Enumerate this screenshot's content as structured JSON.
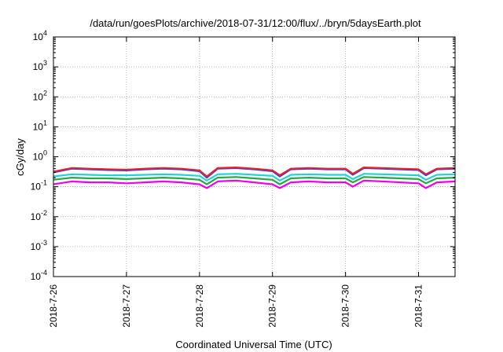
{
  "chart_data": {
    "type": "line",
    "title": "/data/run/goesPlots/archive/2018-07-31/12:00/flux/../bryn/5daysEarth.plot",
    "xlabel": "Coordinated Universal Time (UTC)",
    "ylabel": "cGy/day",
    "yscale": "log",
    "ylim": [
      0.0001,
      10000
    ],
    "xlim": [
      0,
      5.5
    ],
    "grid": true,
    "x_tick_labels": [
      "2018-7-26",
      "2018-7-27",
      "2018-7-28",
      "2018-7-29",
      "2018-7-30",
      "2018-7-31"
    ],
    "x_tick_values": [
      0,
      1,
      2,
      3,
      4,
      5
    ],
    "y_tick_labels": [
      {
        "base": "10",
        "exp": "-4",
        "value": 0.0001
      },
      {
        "base": "10",
        "exp": "-3",
        "value": 0.001
      },
      {
        "base": "10",
        "exp": "-2",
        "value": 0.01
      },
      {
        "base": "10",
        "exp": "-1",
        "value": 0.1
      },
      {
        "base": "10",
        "exp": "0",
        "value": 1
      },
      {
        "base": "10",
        "exp": "1",
        "value": 10
      },
      {
        "base": "10",
        "exp": "2",
        "value": 100
      },
      {
        "base": "10",
        "exp": "3",
        "value": 1000
      },
      {
        "base": "10",
        "exp": "4",
        "value": 10000
      }
    ],
    "series": [
      {
        "color": "#1f3fff",
        "x": [
          0,
          0.25,
          0.5,
          0.75,
          1,
          1.25,
          1.5,
          1.75,
          2,
          2.1,
          2.25,
          2.5,
          2.75,
          3,
          3.1,
          3.25,
          3.5,
          3.75,
          4,
          4.1,
          4.25,
          4.5,
          4.75,
          5,
          5.1,
          5.25,
          5.5
        ],
        "y": [
          0.3,
          0.4,
          0.38,
          0.36,
          0.35,
          0.38,
          0.4,
          0.38,
          0.33,
          0.2,
          0.4,
          0.42,
          0.38,
          0.33,
          0.22,
          0.38,
          0.4,
          0.38,
          0.38,
          0.25,
          0.42,
          0.4,
          0.38,
          0.36,
          0.24,
          0.38,
          0.4
        ]
      },
      {
        "color": "#e8202a",
        "x": [
          0,
          0.25,
          0.5,
          0.75,
          1,
          1.25,
          1.5,
          1.75,
          2,
          2.1,
          2.25,
          2.5,
          2.75,
          3,
          3.1,
          3.25,
          3.5,
          3.75,
          4,
          4.1,
          4.25,
          4.5,
          4.75,
          5,
          5.1,
          5.25,
          5.5
        ],
        "y": [
          0.32,
          0.42,
          0.4,
          0.38,
          0.37,
          0.4,
          0.42,
          0.4,
          0.35,
          0.22,
          0.42,
          0.44,
          0.4,
          0.35,
          0.24,
          0.4,
          0.42,
          0.4,
          0.4,
          0.27,
          0.44,
          0.42,
          0.4,
          0.38,
          0.26,
          0.4,
          0.42
        ]
      },
      {
        "color": "#22d3d3",
        "x": [
          0,
          0.25,
          0.5,
          0.75,
          1,
          1.25,
          1.5,
          1.75,
          2,
          2.1,
          2.25,
          2.5,
          2.75,
          3,
          3.1,
          3.25,
          3.5,
          3.75,
          4,
          4.1,
          4.25,
          4.5,
          4.75,
          5,
          5.1,
          5.25,
          5.5
        ],
        "y": [
          0.22,
          0.26,
          0.25,
          0.24,
          0.24,
          0.25,
          0.26,
          0.25,
          0.23,
          0.16,
          0.26,
          0.27,
          0.25,
          0.23,
          0.16,
          0.25,
          0.26,
          0.25,
          0.25,
          0.18,
          0.27,
          0.26,
          0.25,
          0.24,
          0.17,
          0.25,
          0.26
        ]
      },
      {
        "color": "#28a745",
        "x": [
          0,
          0.25,
          0.5,
          0.75,
          1,
          1.25,
          1.5,
          1.75,
          2,
          2.1,
          2.25,
          2.5,
          2.75,
          3,
          3.1,
          3.25,
          3.5,
          3.75,
          4,
          4.1,
          4.25,
          4.5,
          4.75,
          5,
          5.1,
          5.25,
          5.5
        ],
        "y": [
          0.17,
          0.2,
          0.19,
          0.19,
          0.18,
          0.19,
          0.2,
          0.19,
          0.17,
          0.12,
          0.2,
          0.21,
          0.19,
          0.17,
          0.12,
          0.19,
          0.2,
          0.19,
          0.19,
          0.14,
          0.21,
          0.2,
          0.19,
          0.18,
          0.13,
          0.19,
          0.2
        ]
      },
      {
        "color": "#ee00ee",
        "x": [
          0,
          0.25,
          0.5,
          0.75,
          1,
          1.25,
          1.5,
          1.75,
          2,
          2.1,
          2.25,
          2.5,
          2.75,
          3,
          3.1,
          3.25,
          3.5,
          3.75,
          4,
          4.1,
          4.25,
          4.5,
          4.75,
          5,
          5.1,
          5.25,
          5.5
        ],
        "y": [
          0.12,
          0.15,
          0.14,
          0.14,
          0.13,
          0.14,
          0.15,
          0.14,
          0.12,
          0.09,
          0.15,
          0.16,
          0.14,
          0.12,
          0.09,
          0.14,
          0.15,
          0.14,
          0.14,
          0.1,
          0.16,
          0.15,
          0.14,
          0.13,
          0.09,
          0.14,
          0.15
        ]
      }
    ]
  }
}
